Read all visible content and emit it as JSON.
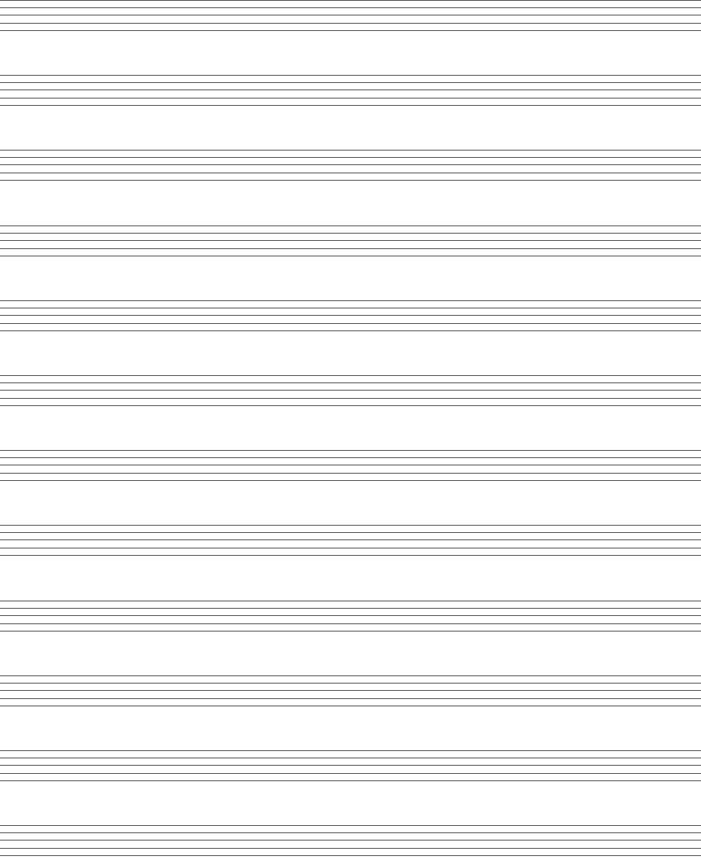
{
  "page": {
    "type": "blank staff paper",
    "staff_count": 12,
    "lines_per_staff": 5,
    "line_color": "#666666",
    "background_color": "#ffffff"
  }
}
